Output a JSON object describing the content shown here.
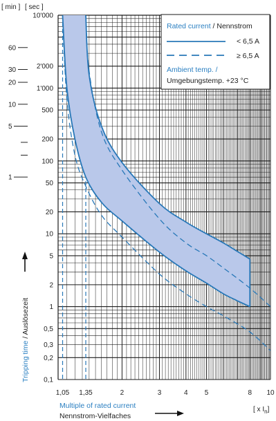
{
  "chart_data": {
    "type": "line",
    "x_scale": "log",
    "y_scale": "log",
    "xlim": [
      1,
      10
    ],
    "ylim": [
      0.1,
      10000
    ],
    "header": {
      "min_label": "[ min ]",
      "sec_label": "[ sec ]"
    },
    "sec_ticks": [
      {
        "value": 10000,
        "label": "10'000"
      },
      {
        "value": 2000,
        "label": "2'000"
      },
      {
        "value": 1000,
        "label": "1'000"
      },
      {
        "value": 500,
        "label": "500"
      },
      {
        "value": 200,
        "label": "200"
      },
      {
        "value": 100,
        "label": "100"
      },
      {
        "value": 50,
        "label": "50"
      },
      {
        "value": 20,
        "label": "20"
      },
      {
        "value": 10,
        "label": "10"
      },
      {
        "value": 5,
        "label": "5"
      },
      {
        "value": 2,
        "label": "2"
      },
      {
        "value": 1,
        "label": "1"
      },
      {
        "value": 0.5,
        "label": "0,5"
      },
      {
        "value": 0.3,
        "label": "0,3"
      },
      {
        "value": 0.2,
        "label": "0,2"
      },
      {
        "value": 0.1,
        "label": "0,1"
      }
    ],
    "min_ticks": [
      {
        "value": 60,
        "label": "60"
      },
      {
        "value": 30,
        "label": "30"
      },
      {
        "value": 20,
        "label": "20"
      },
      {
        "value": 10,
        "label": "10"
      },
      {
        "value": 5,
        "label": "5"
      },
      {
        "value": 3,
        "label": ""
      },
      {
        "value": 2,
        "label": ""
      },
      {
        "value": 1,
        "label": "1"
      }
    ],
    "x_ticks": [
      {
        "value": 1.05,
        "label": "1,05"
      },
      {
        "value": 1.35,
        "label": "1,35"
      },
      {
        "value": 2,
        "label": "2"
      },
      {
        "value": 3,
        "label": "3"
      },
      {
        "value": 4,
        "label": "4"
      },
      {
        "value": 5,
        "label": "5"
      },
      {
        "value": 8,
        "label": "8"
      },
      {
        "value": 10,
        "label": "10"
      }
    ],
    "x_unit_label": "[ x I",
    "x_unit_sub": "n",
    "x_unit_close": "]",
    "xlabel": "Multiple of rated current",
    "xlabel_de": "Nennstrom-Vielfaches",
    "ylabel": "Tripping time",
    "ylabel_de": " / Auslösezeit",
    "legend": {
      "title_en": "Rated current",
      "title_de": " / Nennstrom",
      "solid_label": "< 6,5 A",
      "dashed_label": "≥ 6,5 A",
      "ambient_1": "Ambient temp. /",
      "ambient_2": "Umgebungstemp. +23 °C"
    },
    "series": [
      {
        "name": "< 6,5 A",
        "style": "solid",
        "role": "upper",
        "x": [
          1.35,
          1.4,
          1.6,
          2,
          3,
          4,
          5,
          6,
          7,
          8
        ],
        "y": [
          10000,
          1500,
          300,
          95,
          26,
          14.5,
          10,
          7.5,
          5.7,
          4.5
        ]
      },
      {
        "name": "< 6,5 A",
        "style": "solid",
        "role": "lower",
        "x": [
          1.05,
          1.1,
          1.2,
          1.35,
          1.6,
          2,
          3,
          4,
          5,
          6,
          7,
          8
        ],
        "y": [
          10000,
          1000,
          200,
          60,
          27,
          15,
          5.6,
          3.1,
          2.1,
          1.5,
          1.2,
          1.0
        ]
      },
      {
        "name": "≥ 6,5 A",
        "style": "dashed",
        "role": "upper",
        "x": [
          1.35,
          1.4,
          1.6,
          2,
          3,
          4,
          5,
          6,
          8,
          10
        ],
        "y": [
          10000,
          1700,
          250,
          75,
          16,
          7.5,
          5,
          3.4,
          1.8,
          1.0
        ]
      },
      {
        "name": "≥ 6,5 A",
        "style": "dashed",
        "role": "lower",
        "x": [
          1.05,
          1.1,
          1.2,
          1.35,
          1.6,
          2,
          3,
          4,
          5,
          6,
          8,
          10
        ],
        "y": [
          10000,
          700,
          120,
          45,
          18,
          9,
          2.8,
          1.5,
          1.0,
          0.75,
          0.45,
          0.25
        ]
      }
    ],
    "colors": {
      "curve": "#2878b8",
      "fill": "#b9c8ea",
      "text_accent": "#2a7fc1",
      "grid": "#1a1a1a"
    }
  }
}
